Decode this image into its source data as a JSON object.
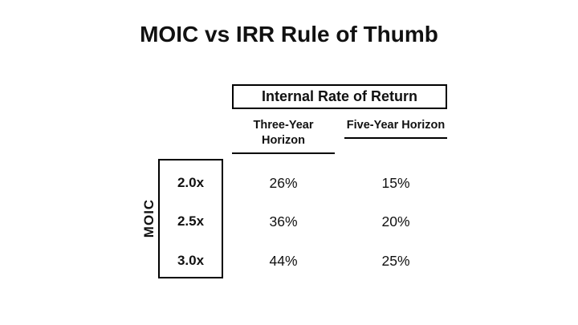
{
  "slide": {
    "title": "MOIC vs IRR Rule of Thumb"
  },
  "chart_data": {
    "type": "table",
    "title": "MOIC vs IRR Rule of Thumb",
    "column_group_label": "Internal Rate of Return",
    "row_group_label": "MOIC",
    "columns": [
      "Three-Year Horizon",
      "Five-Year Horizon"
    ],
    "row_labels": [
      "2.0x",
      "2.5x",
      "3.0x"
    ],
    "values": [
      [
        "26%",
        "15%"
      ],
      [
        "36%",
        "20%"
      ],
      [
        "44%",
        "25%"
      ]
    ]
  },
  "colors": {
    "background": "#ffffff",
    "text": "#111111",
    "border": "#000000"
  }
}
